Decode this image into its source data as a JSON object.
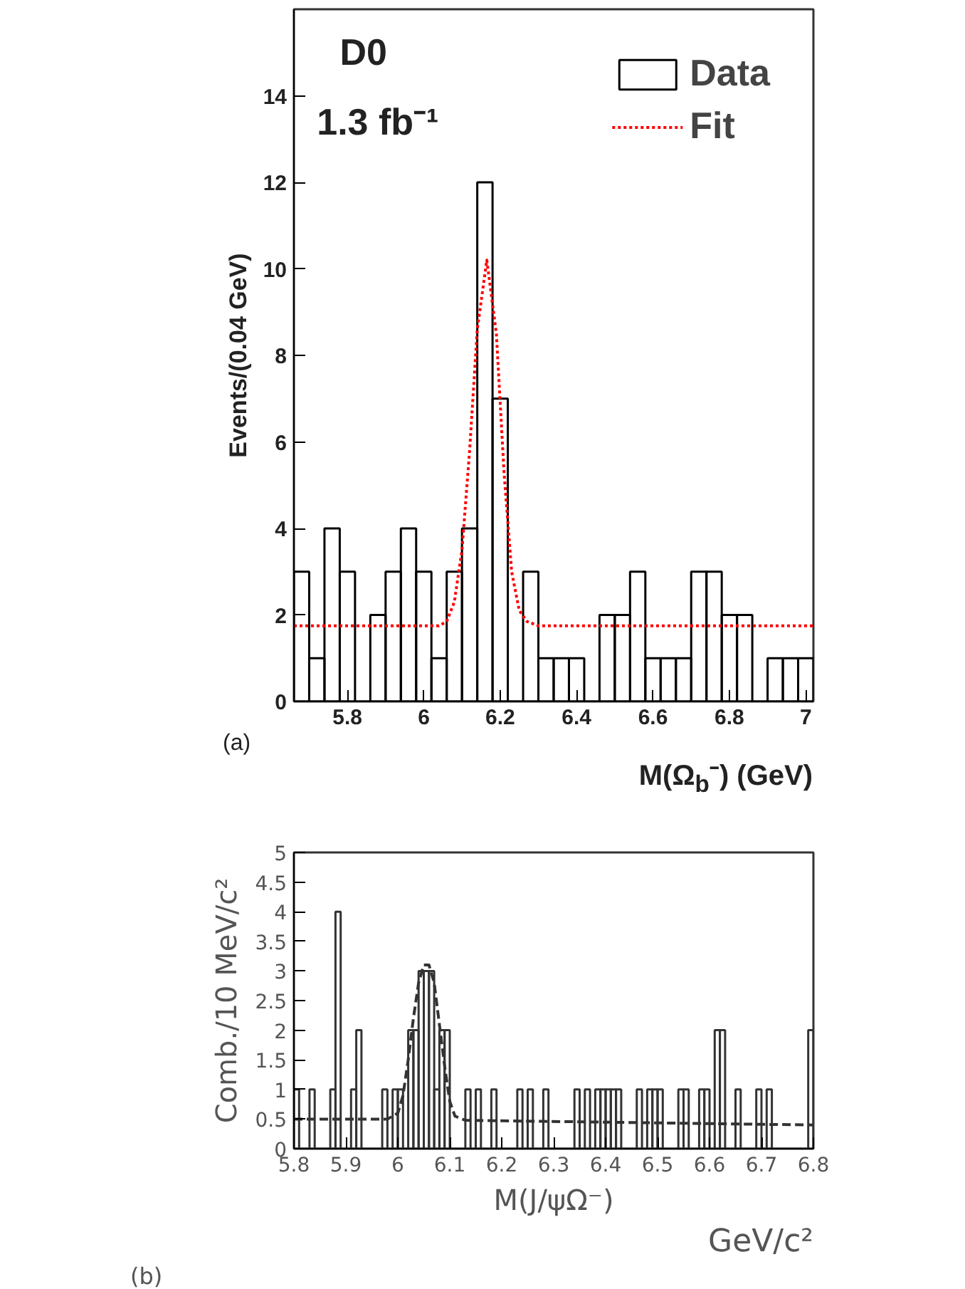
{
  "chart_data": [
    {
      "type": "histogram",
      "ylabel": "Events/(0.04 GeV)",
      "xlabel": "M(Ω$_{b}$⁻) (GeV)",
      "bins": [
        5.66,
        5.7,
        5.74,
        5.78,
        5.82,
        5.86,
        5.9,
        5.94,
        5.98,
        6.02,
        6.06,
        6.1,
        6.14,
        6.18,
        6.22,
        6.26,
        6.3,
        6.34,
        6.38,
        6.42,
        6.46,
        6.5,
        6.54,
        6.58,
        6.62,
        6.66,
        6.7,
        6.74,
        6.78,
        6.82,
        6.86,
        6.9,
        6.94,
        6.98,
        7.02
      ],
      "series": [
        {
          "name": "Data",
          "color": "#000000",
          "values": [
            3,
            1,
            4,
            3,
            0,
            2,
            3,
            4,
            3,
            1,
            3,
            4,
            12,
            7,
            0,
            3,
            1,
            1,
            1,
            0,
            2,
            2,
            3,
            1,
            1,
            1,
            3,
            3,
            2,
            2,
            0,
            1,
            1,
            1
          ]
        },
        {
          "name": "Fit",
          "type": "line",
          "color": "#ff0000",
          "line_style": "dotted",
          "x": [
            5.66,
            6.04,
            6.06,
            6.08,
            6.1,
            6.12,
            6.14,
            6.165,
            6.19,
            6.21,
            6.23,
            6.25,
            6.27,
            6.3,
            7.02
          ],
          "values": [
            1.75,
            1.75,
            1.85,
            2.3,
            3.5,
            5.8,
            8.6,
            10.2,
            8.5,
            5.3,
            3.0,
            2.1,
            1.85,
            1.75,
            1.75
          ]
        }
      ],
      "xlim": [
        5.66,
        7.02
      ],
      "ylim": [
        0,
        16
      ],
      "xticks": [
        5.8,
        6,
        6.2,
        6.4,
        6.6,
        6.8,
        7
      ],
      "yticks": [
        0,
        2,
        4,
        6,
        8,
        10,
        12,
        14
      ],
      "grid": false,
      "legend": "top right",
      "annotations": [
        "D0",
        "1.3 fb⁻¹",
        "(a)"
      ]
    },
    {
      "type": "histogram",
      "ylabel": "Comb./10 MeV/c²",
      "xlabel": "M(J/ψΩ⁻)",
      "bins": [
        5.8,
        5.81,
        5.82,
        5.83,
        5.84,
        5.85,
        5.86,
        5.87,
        5.88,
        5.89,
        5.9,
        5.91,
        5.92,
        5.93,
        5.94,
        5.95,
        5.96,
        5.97,
        5.98,
        5.99,
        6.0,
        6.01,
        6.02,
        6.03,
        6.04,
        6.05,
        6.06,
        6.07,
        6.08,
        6.09,
        6.1,
        6.11,
        6.12,
        6.13,
        6.14,
        6.15,
        6.16,
        6.17,
        6.18,
        6.19,
        6.2,
        6.21,
        6.22,
        6.23,
        6.24,
        6.25,
        6.26,
        6.27,
        6.28,
        6.29,
        6.3,
        6.31,
        6.32,
        6.33,
        6.34,
        6.35,
        6.36,
        6.37,
        6.38,
        6.39,
        6.4,
        6.41,
        6.42,
        6.43,
        6.44,
        6.45,
        6.46,
        6.47,
        6.48,
        6.49,
        6.5,
        6.51,
        6.52,
        6.53,
        6.54,
        6.55,
        6.56,
        6.57,
        6.58,
        6.59,
        6.6,
        6.61,
        6.62,
        6.63,
        6.64,
        6.65,
        6.66,
        6.67,
        6.68,
        6.69,
        6.7,
        6.71,
        6.72,
        6.73,
        6.74,
        6.75,
        6.76,
        6.77,
        6.78,
        6.79,
        6.8
      ],
      "series": [
        {
          "color": "#333333",
          "values": [
            1,
            0,
            0,
            1,
            0,
            0,
            0,
            1,
            4,
            0,
            0,
            1,
            2,
            0,
            0,
            0,
            0,
            1,
            0,
            1,
            1,
            0,
            2,
            2,
            3,
            3,
            3,
            1,
            2,
            2,
            0,
            0,
            0,
            1,
            0,
            1,
            0,
            0,
            1,
            0,
            0,
            0,
            0,
            1,
            0,
            1,
            0,
            0,
            1,
            0,
            0,
            0,
            0,
            0,
            1,
            0,
            1,
            0,
            1,
            1,
            1,
            1,
            1,
            0,
            0,
            0,
            1,
            0,
            1,
            1,
            1,
            0,
            0,
            0,
            1,
            1,
            0,
            0,
            1,
            1,
            0,
            2,
            2,
            0,
            0,
            1,
            0,
            0,
            0,
            1,
            0,
            1,
            0,
            0,
            0,
            0,
            0,
            0,
            0,
            2
          ]
        },
        {
          "type": "line",
          "color": "#333333",
          "line_style": "dashed",
          "x": [
            5.8,
            5.98,
            6.0,
            6.01,
            6.02,
            6.03,
            6.04,
            6.05,
            6.06,
            6.07,
            6.08,
            6.09,
            6.1,
            6.11,
            6.13,
            6.8
          ],
          "values": [
            0.5,
            0.5,
            0.6,
            0.9,
            1.5,
            2.2,
            2.8,
            3.1,
            3.1,
            2.8,
            2.1,
            1.4,
            0.8,
            0.55,
            0.48,
            0.4
          ]
        }
      ],
      "xlim": [
        5.8,
        6.8
      ],
      "ylim": [
        0,
        5
      ],
      "xticks": [
        5.8,
        5.9,
        6,
        6.1,
        6.2,
        6.3,
        6.4,
        6.5,
        6.6,
        6.7,
        6.8
      ],
      "yticks": [
        0,
        0.5,
        1,
        1.5,
        2,
        2.5,
        3,
        3.5,
        4,
        4.5,
        5
      ],
      "grid": false,
      "legend": false,
      "annotations": [
        "GeV/c²",
        "(b)"
      ]
    }
  ]
}
